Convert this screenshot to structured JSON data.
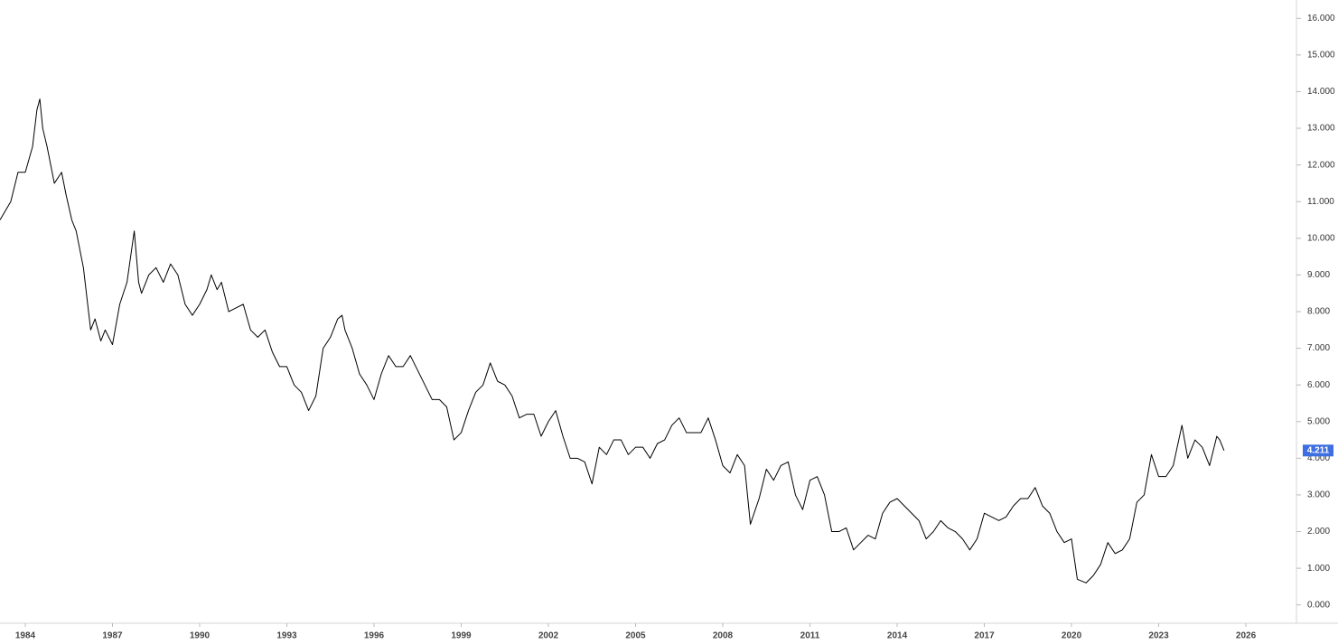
{
  "chart_data": {
    "type": "line",
    "color": "#000000",
    "x": [
      1983.13,
      1983.5,
      1983.75,
      1984.0,
      1984.25,
      1984.4,
      1984.5,
      1984.6,
      1984.75,
      1985.0,
      1985.25,
      1985.4,
      1985.6,
      1985.75,
      1986.0,
      1986.25,
      1986.4,
      1986.6,
      1986.75,
      1987.0,
      1987.25,
      1987.5,
      1987.75,
      1987.9,
      1988.0,
      1988.25,
      1988.5,
      1988.75,
      1989.0,
      1989.25,
      1989.5,
      1989.75,
      1990.0,
      1990.25,
      1990.4,
      1990.6,
      1990.75,
      1991.0,
      1991.25,
      1991.5,
      1991.75,
      1992.0,
      1992.25,
      1992.5,
      1992.75,
      1993.0,
      1993.25,
      1993.5,
      1993.75,
      1994.0,
      1994.25,
      1994.5,
      1994.75,
      1994.9,
      1995.0,
      1995.25,
      1995.5,
      1995.75,
      1996.0,
      1996.25,
      1996.5,
      1996.75,
      1997.0,
      1997.25,
      1997.5,
      1997.75,
      1998.0,
      1998.25,
      1998.5,
      1998.75,
      1999.0,
      1999.25,
      1999.5,
      1999.75,
      2000.0,
      2000.25,
      2000.5,
      2000.75,
      2001.0,
      2001.25,
      2001.5,
      2001.75,
      2002.0,
      2002.25,
      2002.5,
      2002.75,
      2003.0,
      2003.25,
      2003.5,
      2003.75,
      2004.0,
      2004.25,
      2004.5,
      2004.75,
      2005.0,
      2005.25,
      2005.5,
      2005.75,
      2006.0,
      2006.25,
      2006.5,
      2006.75,
      2007.0,
      2007.25,
      2007.5,
      2007.75,
      2008.0,
      2008.25,
      2008.5,
      2008.75,
      2008.95,
      2009.25,
      2009.5,
      2009.75,
      2010.0,
      2010.25,
      2010.5,
      2010.75,
      2011.0,
      2011.25,
      2011.5,
      2011.75,
      2012.0,
      2012.25,
      2012.5,
      2012.75,
      2013.0,
      2013.25,
      2013.5,
      2013.75,
      2014.0,
      2014.25,
      2014.5,
      2014.75,
      2015.0,
      2015.25,
      2015.5,
      2015.75,
      2016.0,
      2016.25,
      2016.5,
      2016.75,
      2017.0,
      2017.25,
      2017.5,
      2017.75,
      2018.0,
      2018.25,
      2018.5,
      2018.75,
      2019.0,
      2019.25,
      2019.5,
      2019.75,
      2020.0,
      2020.2,
      2020.5,
      2020.75,
      2021.0,
      2021.25,
      2021.5,
      2021.75,
      2022.0,
      2022.25,
      2022.5,
      2022.75,
      2023.0,
      2023.25,
      2023.5,
      2023.8,
      2024.0,
      2024.25,
      2024.5,
      2024.75,
      2025.0,
      2025.1,
      2025.25
    ],
    "values": [
      10.5,
      11.0,
      11.8,
      11.8,
      12.5,
      13.5,
      13.8,
      13.0,
      12.5,
      11.5,
      11.8,
      11.2,
      10.5,
      10.2,
      9.2,
      7.5,
      7.8,
      7.2,
      7.5,
      7.1,
      8.2,
      8.8,
      10.2,
      8.8,
      8.5,
      9.0,
      9.2,
      8.8,
      9.3,
      9.0,
      8.2,
      7.9,
      8.2,
      8.6,
      9.0,
      8.6,
      8.8,
      8.0,
      8.1,
      8.2,
      7.5,
      7.3,
      7.5,
      6.9,
      6.5,
      6.5,
      6.0,
      5.8,
      5.3,
      5.7,
      7.0,
      7.3,
      7.8,
      7.9,
      7.5,
      7.0,
      6.3,
      6.0,
      5.6,
      6.3,
      6.8,
      6.5,
      6.5,
      6.8,
      6.4,
      6.0,
      5.6,
      5.6,
      5.4,
      4.5,
      4.7,
      5.3,
      5.8,
      6.0,
      6.6,
      6.1,
      6.0,
      5.7,
      5.1,
      5.2,
      5.2,
      4.6,
      5.0,
      5.3,
      4.6,
      4.0,
      4.0,
      3.9,
      3.3,
      4.3,
      4.1,
      4.5,
      4.5,
      4.1,
      4.3,
      4.3,
      4.0,
      4.4,
      4.5,
      4.9,
      5.1,
      4.7,
      4.7,
      4.7,
      5.1,
      4.5,
      3.8,
      3.6,
      4.1,
      3.8,
      2.2,
      2.9,
      3.7,
      3.4,
      3.8,
      3.9,
      3.0,
      2.6,
      3.4,
      3.5,
      3.0,
      2.0,
      2.0,
      2.1,
      1.5,
      1.7,
      1.9,
      1.8,
      2.5,
      2.8,
      2.9,
      2.7,
      2.5,
      2.3,
      1.8,
      2.0,
      2.3,
      2.1,
      2.0,
      1.8,
      1.5,
      1.8,
      2.5,
      2.4,
      2.3,
      2.4,
      2.7,
      2.9,
      2.9,
      3.2,
      2.7,
      2.5,
      2.0,
      1.7,
      1.8,
      0.7,
      0.6,
      0.8,
      1.1,
      1.7,
      1.4,
      1.5,
      1.8,
      2.8,
      3.0,
      4.1,
      3.5,
      3.5,
      3.8,
      4.9,
      4.0,
      4.5,
      4.3,
      3.8,
      4.6,
      4.5,
      4.211
    ],
    "xlim": [
      1983.13,
      2027.74
    ],
    "xticks": [
      1984,
      1987,
      1990,
      1993,
      1996,
      1999,
      2002,
      2005,
      2008,
      2011,
      2014,
      2017,
      2020,
      2023,
      2026
    ],
    "ylim": [
      -0.5,
      16.5
    ],
    "yticks": [
      {
        "value": 0,
        "label": "0.000"
      },
      {
        "value": 1,
        "label": "1.000"
      },
      {
        "value": 2,
        "label": "2.000"
      },
      {
        "value": 3,
        "label": "3.000"
      },
      {
        "value": 4,
        "label": "4.000"
      },
      {
        "value": 5,
        "label": "5.000"
      },
      {
        "value": 6,
        "label": "6.000"
      },
      {
        "value": 7,
        "label": "7.000"
      },
      {
        "value": 8,
        "label": "8.000"
      },
      {
        "value": 9,
        "label": "9.000"
      },
      {
        "value": 10,
        "label": "10.000"
      },
      {
        "value": 11,
        "label": "11.000"
      },
      {
        "value": 12,
        "label": "12.000"
      },
      {
        "value": 13,
        "label": "13.000"
      },
      {
        "value": 14,
        "label": "14.000"
      },
      {
        "value": 15,
        "label": "15.000"
      },
      {
        "value": 16,
        "label": "16.000"
      }
    ],
    "last_value": {
      "value": 4.211,
      "label": "4.211",
      "color": "#3d6fe0"
    }
  }
}
